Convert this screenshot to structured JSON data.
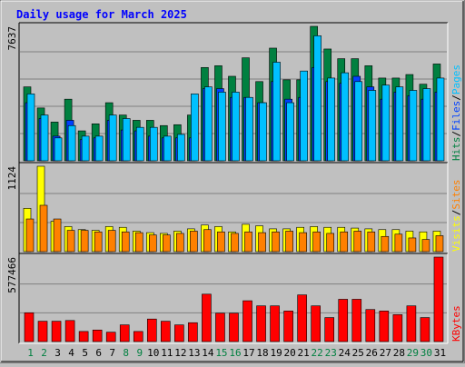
{
  "chart_data": {
    "type": "bar",
    "title": "Daily usage for March 2025",
    "categories": [
      "1",
      "2",
      "3",
      "4",
      "5",
      "6",
      "7",
      "8",
      "9",
      "10",
      "11",
      "12",
      "13",
      "14",
      "15",
      "16",
      "17",
      "18",
      "19",
      "20",
      "21",
      "22",
      "23",
      "24",
      "25",
      "26",
      "27",
      "28",
      "29",
      "30",
      "31"
    ],
    "weekend_days": [
      "1",
      "2",
      "8",
      "9",
      "15",
      "16",
      "22",
      "23",
      "29",
      "30"
    ],
    "colors": {
      "hits": "#008040",
      "files": "#0040ff",
      "pages": "#00c0ff",
      "visits": "#ffff00",
      "sites": "#ff8000",
      "kbytes": "#ff0000",
      "title": "#0000ff",
      "weekend_label": "#008040",
      "weekday_label": "#000000"
    },
    "panels": [
      {
        "id": "requests",
        "ymax_label": "7637",
        "ymax": 7637,
        "legend": [
          {
            "label": "Pages",
            "color": "#00c0ff"
          },
          {
            "label": "Files",
            "color": "#0040ff"
          },
          {
            "label": "Hits",
            "color": "#008040"
          }
        ],
        "series": [
          {
            "name": "Hits",
            "values": [
              4200,
              3000,
              2200,
              3500,
              1700,
              2100,
              3300,
              2600,
              2300,
              2300,
              2000,
              2050,
              2600,
              5300,
              5400,
              4800,
              5850,
              4500,
              6400,
              4600,
              4600,
              7637,
              6350,
              5800,
              5800,
              5400,
              4700,
              4700,
              4900,
              4350,
              5500
            ]
          },
          {
            "name": "Files",
            "values": [
              3300,
              2400,
              1400,
              2300,
              1200,
              1300,
              2300,
              1750,
              1700,
              1400,
              1300,
              1300,
              1300,
              4100,
              4100,
              3600,
              3600,
              3300,
              4500,
              3500,
              3600,
              5300,
              4500,
              4400,
              4800,
              4200,
              3500,
              3900,
              3700,
              3500,
              3900
            ]
          },
          {
            "name": "Pages",
            "values": [
              3800,
              2600,
              1300,
              2000,
              1400,
              1400,
              2600,
              2400,
              1900,
              1900,
              1400,
              1500,
              3800,
              4200,
              3900,
              3900,
              3600,
              3300,
              5600,
              3300,
              5100,
              7100,
              4700,
              5000,
              4500,
              4000,
              4300,
              4200,
              4000,
              4100,
              4700
            ]
          }
        ]
      },
      {
        "id": "visitors",
        "ymax_label": "1124",
        "ymax": 1124,
        "legend": [
          {
            "label": "Sites",
            "color": "#ff8000"
          },
          {
            "label": "Visits",
            "color": "#ffff00"
          }
        ],
        "series": [
          {
            "name": "Visits",
            "values": [
              570,
              1124,
              400,
              330,
              290,
              280,
              330,
              320,
              270,
              250,
              240,
              270,
              300,
              350,
              330,
              260,
              360,
              340,
              300,
              300,
              320,
              330,
              320,
              320,
              310,
              300,
              290,
              290,
              270,
              260,
              270
            ]
          },
          {
            "name": "Sites",
            "values": [
              430,
              610,
              430,
              280,
              280,
              260,
              280,
              260,
              250,
              220,
              220,
              240,
              270,
              290,
              260,
              240,
              260,
              250,
              260,
              270,
              250,
              260,
              240,
              260,
              270,
              260,
              200,
              230,
              180,
              160,
              210
            ]
          }
        ]
      },
      {
        "id": "kbytes",
        "ymax_label": "577466",
        "ymax": 577466,
        "legend": [
          {
            "label": "KBytes",
            "color": "#ff0000"
          }
        ],
        "series": [
          {
            "name": "KBytes",
            "values": [
              197000,
              139000,
              139000,
              144000,
              69000,
              79000,
              64000,
              114000,
              69000,
              154000,
              139000,
              114000,
              129000,
              324000,
              194000,
              194000,
              279000,
              244000,
              244000,
              209000,
              319000,
              244000,
              164000,
              289000,
              289000,
              219000,
              209000,
              184000,
              244000,
              164000,
              577466
            ]
          }
        ]
      }
    ]
  }
}
